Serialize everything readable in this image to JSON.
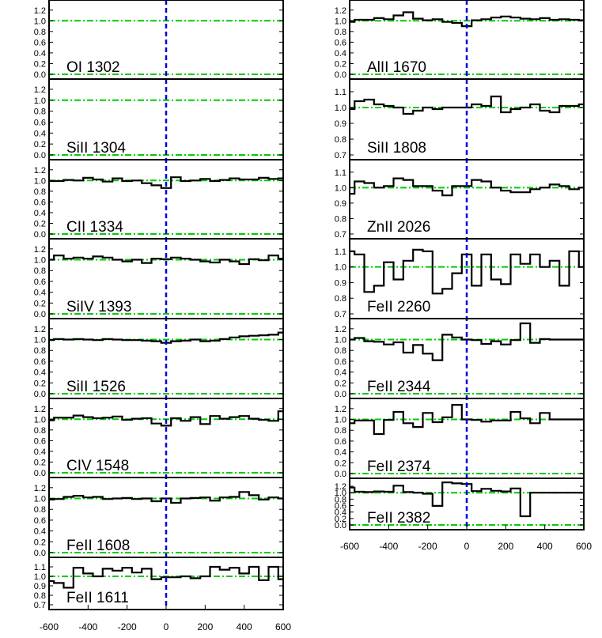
{
  "chart_data": {
    "type": "line",
    "xlim": [
      -600,
      600
    ],
    "xticks": [
      "-600",
      "-400",
      "-200",
      "0",
      "200",
      "400",
      "600"
    ],
    "x": [
      -600,
      -550,
      -500,
      -450,
      -400,
      -350,
      -300,
      -250,
      -200,
      -150,
      -100,
      -50,
      0,
      50,
      100,
      150,
      200,
      250,
      300,
      350,
      400,
      450,
      500,
      550,
      600
    ],
    "reference_lines": {
      "velocity_zero": 0,
      "continuum": 1.0,
      "zero_flux": 0.0
    },
    "colors": {
      "spectrum": "#000000",
      "continuum_line": "#00cc00",
      "zero_line": "#0000dd"
    },
    "panels": [
      {
        "label": "OI 1302",
        "column": 1,
        "ylim": [
          0.0,
          1.3
        ],
        "yticks": [
          "0.0",
          "0.2",
          "0.4",
          "0.6",
          "0.8",
          "1.0",
          "1.2"
        ],
        "values": null
      },
      {
        "label": "SiII 1304",
        "column": 1,
        "ylim": [
          0.0,
          1.3
        ],
        "yticks": [
          "0.0",
          "0.2",
          "0.4",
          "0.6",
          "0.8",
          "1.0",
          "1.2"
        ],
        "values": null
      },
      {
        "label": "CII 1334",
        "column": 1,
        "ylim": [
          0.0,
          1.3
        ],
        "yticks": [
          "0.0",
          "0.2",
          "0.4",
          "0.6",
          "0.8",
          "1.0",
          "1.2"
        ],
        "values": [
          0.99,
          0.99,
          1.01,
          1.0,
          1.05,
          1.02,
          0.98,
          1.04,
          0.99,
          1.0,
          0.95,
          0.91,
          0.86,
          1.06,
          0.99,
          1.0,
          1.03,
          0.99,
          1.01,
          1.04,
          1.02,
          1.02,
          1.05,
          1.03,
          1.04
        ]
      },
      {
        "label": "SiIV 1393",
        "column": 1,
        "ylim": [
          0.0,
          1.3
        ],
        "yticks": [
          "0.0",
          "0.2",
          "0.4",
          "0.6",
          "0.8",
          "1.0",
          "1.2"
        ],
        "values": [
          1.0,
          1.08,
          1.02,
          1.04,
          1.02,
          1.06,
          1.04,
          1.0,
          0.97,
          1.0,
          0.94,
          1.02,
          1.01,
          1.04,
          1.02,
          1.0,
          0.97,
          0.95,
          1.0,
          0.97,
          0.92,
          1.01,
          0.99,
          1.08,
          1.02
        ]
      },
      {
        "label": "SiII 1526",
        "column": 1,
        "ylim": [
          0.0,
          1.3
        ],
        "yticks": [
          "0.0",
          "0.2",
          "0.4",
          "0.6",
          "0.8",
          "1.0",
          "1.2"
        ],
        "values": [
          0.99,
          1.01,
          1.0,
          1.01,
          1.0,
          0.99,
          1.01,
          1.0,
          0.99,
          0.99,
          0.98,
          0.97,
          0.94,
          0.97,
          0.98,
          1.0,
          0.97,
          0.98,
          1.01,
          1.04,
          1.06,
          1.07,
          1.08,
          1.09,
          1.13
        ]
      },
      {
        "label": "CIV 1548",
        "column": 1,
        "ylim": [
          0.0,
          1.3
        ],
        "yticks": [
          "0.0",
          "0.2",
          "0.4",
          "0.6",
          "0.8",
          "1.0",
          "1.2"
        ],
        "values": [
          0.98,
          1.03,
          1.03,
          1.07,
          1.04,
          1.02,
          1.03,
          1.05,
          0.99,
          1.01,
          1.02,
          0.92,
          0.88,
          1.02,
          0.97,
          1.04,
          0.91,
          1.06,
          1.01,
          1.04,
          1.06,
          1.01,
          0.99,
          0.97,
          1.15
        ]
      },
      {
        "label": "FeII 1608",
        "column": 1,
        "ylim": [
          0.0,
          1.3
        ],
        "yticks": [
          "0.0",
          "0.2",
          "0.4",
          "0.6",
          "0.8",
          "1.0",
          "1.2"
        ],
        "values": [
          0.98,
          0.99,
          1.03,
          1.05,
          1.02,
          1.03,
          0.99,
          1.0,
          1.01,
          0.99,
          1.0,
          0.95,
          1.0,
          0.92,
          1.0,
          1.01,
          1.02,
          0.96,
          1.02,
          1.03,
          1.12,
          1.06,
          0.98,
          1.02,
          1.0
        ]
      },
      {
        "label": "FeII 1611",
        "column": 1,
        "ylim": [
          0.7,
          1.15
        ],
        "yticks": [
          "0.7",
          "0.8",
          "0.9",
          "1.0",
          "1.1"
        ],
        "values": [
          0.95,
          0.93,
          0.88,
          1.09,
          1.03,
          1.0,
          1.08,
          1.06,
          1.09,
          1.04,
          1.08,
          0.97,
          0.99,
          0.99,
          1.0,
          0.98,
          1.0,
          1.1,
          1.07,
          1.09,
          1.03,
          1.1,
          0.96,
          1.1,
          0.97
        ]
      },
      {
        "label": "AlII 1670",
        "column": 2,
        "ylim": [
          0.0,
          1.3
        ],
        "yticks": [
          "0.0",
          "0.2",
          "0.4",
          "0.6",
          "0.8",
          "1.0",
          "1.2"
        ],
        "values": [
          0.98,
          1.02,
          1.02,
          1.05,
          1.03,
          1.1,
          1.16,
          1.04,
          1.01,
          1.03,
          0.98,
          0.96,
          0.9,
          1.01,
          1.03,
          1.06,
          1.08,
          1.06,
          1.04,
          1.03,
          1.05,
          1.02,
          1.03,
          1.02,
          1.01
        ]
      },
      {
        "label": "SiII 1808",
        "column": 2,
        "ylim": [
          0.7,
          1.15
        ],
        "yticks": [
          "0.7",
          "0.8",
          "0.9",
          "1.0",
          "1.1"
        ],
        "values": [
          0.99,
          1.04,
          1.05,
          1.02,
          1.01,
          1.0,
          0.96,
          0.98,
          1.0,
          0.99,
          1.0,
          1.0,
          1.0,
          1.02,
          1.01,
          1.07,
          0.97,
          0.99,
          1.0,
          1.02,
          0.98,
          0.97,
          1.01,
          1.01,
          1.02
        ]
      },
      {
        "label": "ZnII 2026",
        "column": 2,
        "ylim": [
          0.7,
          1.15
        ],
        "yticks": [
          "0.7",
          "0.8",
          "0.9",
          "1.0",
          "1.1"
        ],
        "values": [
          0.96,
          1.04,
          1.03,
          1.0,
          1.01,
          1.06,
          1.05,
          1.01,
          1.01,
          0.98,
          0.95,
          1.01,
          1.01,
          1.05,
          1.04,
          1.0,
          0.98,
          0.97,
          0.97,
          0.99,
          1.0,
          1.02,
          1.01,
          0.99,
          1.0
        ]
      },
      {
        "label": "FeII 2260",
        "column": 2,
        "ylim": [
          0.7,
          1.15
        ],
        "yticks": [
          "0.7",
          "0.8",
          "0.9",
          "1.0",
          "1.1"
        ],
        "values": [
          1.1,
          1.08,
          0.84,
          0.88,
          1.03,
          0.92,
          1.04,
          1.11,
          1.1,
          0.83,
          0.86,
          0.96,
          1.08,
          0.88,
          1.08,
          0.92,
          0.89,
          1.08,
          1.02,
          1.08,
          1.0,
          1.04,
          0.88,
          1.1,
          1.0
        ]
      },
      {
        "label": "FeII 2344",
        "column": 2,
        "ylim": [
          0.0,
          1.3
        ],
        "yticks": [
          "0.0",
          "0.2",
          "0.4",
          "0.6",
          "0.8",
          "1.0",
          "1.2"
        ],
        "values": [
          1.0,
          1.03,
          0.97,
          0.96,
          0.91,
          0.95,
          0.76,
          0.9,
          0.74,
          0.62,
          1.09,
          1.04,
          1.0,
          0.99,
          0.92,
          0.97,
          0.91,
          0.99,
          1.3,
          0.94,
          1.01,
          1.0,
          1.0,
          1.0,
          1.0
        ]
      },
      {
        "label": "FeII 2374",
        "column": 2,
        "ylim": [
          0.0,
          1.3
        ],
        "yticks": [
          "0.0",
          "0.2",
          "0.4",
          "0.6",
          "0.8",
          "1.0",
          "1.2"
        ],
        "values": [
          0.93,
          0.98,
          0.98,
          0.73,
          0.99,
          1.14,
          0.93,
          0.86,
          1.12,
          0.95,
          1.04,
          1.27,
          1.0,
          0.99,
          0.96,
          0.98,
          0.98,
          1.14,
          1.02,
          0.93,
          1.12,
          1.0,
          1.0,
          1.0,
          1.0
        ]
      },
      {
        "label": "FeII 2382",
        "column": 2,
        "ylim": [
          0.0,
          1.3
        ],
        "yticks": [
          "0.0",
          "0.2",
          "0.4",
          "0.6",
          "0.8",
          "1.0",
          "1.2"
        ],
        "values": [
          1.16,
          1.03,
          1.02,
          1.04,
          1.03,
          1.22,
          1.02,
          1.0,
          0.97,
          0.59,
          1.32,
          1.29,
          1.27,
          1.05,
          1.12,
          1.06,
          1.04,
          1.13,
          0.27,
          1.0,
          1.0,
          1.0,
          1.0,
          1.0,
          1.0
        ]
      }
    ]
  }
}
